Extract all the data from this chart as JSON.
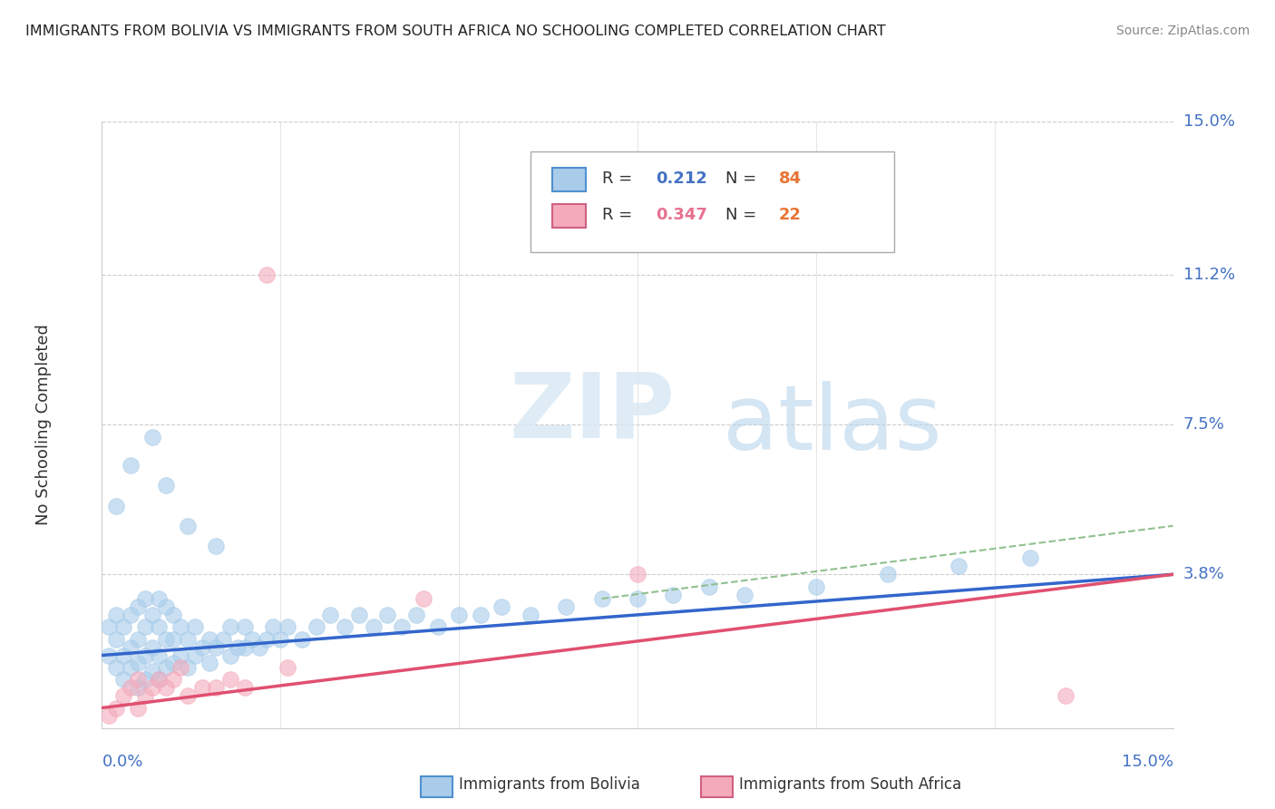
{
  "title": "IMMIGRANTS FROM BOLIVIA VS IMMIGRANTS FROM SOUTH AFRICA NO SCHOOLING COMPLETED CORRELATION CHART",
  "source": "Source: ZipAtlas.com",
  "ylabel": "No Schooling Completed",
  "legend1_R": "0.212",
  "legend1_N": "84",
  "legend2_R": "0.347",
  "legend2_N": "22",
  "color_bolivia": "#A8CCEA",
  "color_south_africa": "#F4AABB",
  "color_line_bolivia": "#3366CC",
  "color_line_south_africa": "#E05070",
  "color_dashed": "#90C090",
  "xlim": [
    0.0,
    0.15
  ],
  "ylim": [
    0.0,
    0.15
  ],
  "ytick_vals": [
    0.038,
    0.075,
    0.112,
    0.15
  ],
  "ytick_labels": [
    "3.8%",
    "7.5%",
    "11.2%",
    "15.0%"
  ],
  "watermark_zip": "ZIP",
  "watermark_atlas": "atlas",
  "bolivia_x": [
    0.001,
    0.001,
    0.002,
    0.002,
    0.002,
    0.003,
    0.003,
    0.003,
    0.004,
    0.004,
    0.004,
    0.005,
    0.005,
    0.005,
    0.005,
    0.006,
    0.006,
    0.006,
    0.006,
    0.007,
    0.007,
    0.007,
    0.008,
    0.008,
    0.008,
    0.008,
    0.009,
    0.009,
    0.009,
    0.01,
    0.01,
    0.01,
    0.011,
    0.011,
    0.012,
    0.012,
    0.013,
    0.013,
    0.014,
    0.015,
    0.015,
    0.016,
    0.017,
    0.018,
    0.018,
    0.019,
    0.02,
    0.02,
    0.021,
    0.022,
    0.023,
    0.024,
    0.025,
    0.026,
    0.028,
    0.03,
    0.032,
    0.034,
    0.036,
    0.038,
    0.04,
    0.042,
    0.044,
    0.047,
    0.05,
    0.053,
    0.056,
    0.06,
    0.065,
    0.07,
    0.075,
    0.08,
    0.085,
    0.09,
    0.1,
    0.11,
    0.12,
    0.13,
    0.002,
    0.004,
    0.007,
    0.009,
    0.012,
    0.016
  ],
  "bolivia_y": [
    0.018,
    0.025,
    0.015,
    0.022,
    0.028,
    0.012,
    0.018,
    0.025,
    0.015,
    0.02,
    0.028,
    0.01,
    0.016,
    0.022,
    0.03,
    0.012,
    0.018,
    0.025,
    0.032,
    0.014,
    0.02,
    0.028,
    0.012,
    0.018,
    0.025,
    0.032,
    0.015,
    0.022,
    0.03,
    0.016,
    0.022,
    0.028,
    0.018,
    0.025,
    0.015,
    0.022,
    0.018,
    0.025,
    0.02,
    0.016,
    0.022,
    0.02,
    0.022,
    0.018,
    0.025,
    0.02,
    0.02,
    0.025,
    0.022,
    0.02,
    0.022,
    0.025,
    0.022,
    0.025,
    0.022,
    0.025,
    0.028,
    0.025,
    0.028,
    0.025,
    0.028,
    0.025,
    0.028,
    0.025,
    0.028,
    0.028,
    0.03,
    0.028,
    0.03,
    0.032,
    0.032,
    0.033,
    0.035,
    0.033,
    0.035,
    0.038,
    0.04,
    0.042,
    0.055,
    0.065,
    0.072,
    0.06,
    0.05,
    0.045
  ],
  "sa_x": [
    0.001,
    0.002,
    0.003,
    0.004,
    0.005,
    0.005,
    0.006,
    0.007,
    0.008,
    0.009,
    0.01,
    0.011,
    0.012,
    0.014,
    0.016,
    0.018,
    0.02,
    0.023,
    0.026,
    0.045,
    0.075,
    0.135
  ],
  "sa_y": [
    0.003,
    0.005,
    0.008,
    0.01,
    0.005,
    0.012,
    0.008,
    0.01,
    0.012,
    0.01,
    0.012,
    0.015,
    0.008,
    0.01,
    0.01,
    0.012,
    0.01,
    0.112,
    0.015,
    0.032,
    0.038,
    0.008
  ],
  "bolivia_line_x0": 0.0,
  "bolivia_line_y0": 0.018,
  "bolivia_line_x1": 0.15,
  "bolivia_line_y1": 0.038,
  "sa_line_x0": 0.0,
  "sa_line_y0": 0.005,
  "sa_line_x1": 0.15,
  "sa_line_y1": 0.038,
  "dashed_line_x0": 0.07,
  "dashed_line_y0": 0.032,
  "dashed_line_x1": 0.15,
  "dashed_line_y1": 0.05
}
